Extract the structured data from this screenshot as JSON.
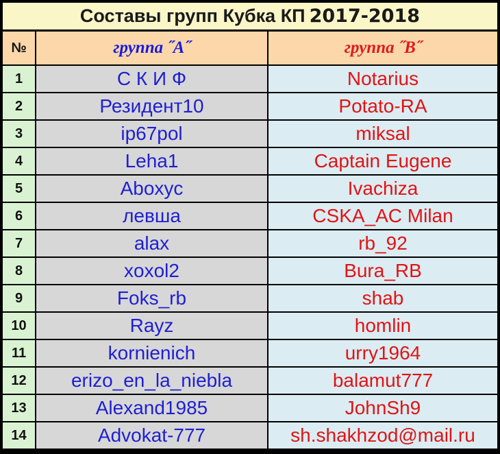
{
  "title": {
    "text": "Составы групп Кубка КП",
    "year": "2017-2018"
  },
  "header": {
    "num": "№",
    "group_a": "группа ˝A˝",
    "group_b": "группа ˝B˝"
  },
  "rows": [
    {
      "num": "1",
      "a": "С К И Ф",
      "b": "Notarius"
    },
    {
      "num": "2",
      "a": "Резидент10",
      "b": "Potato-RA"
    },
    {
      "num": "3",
      "a": "ip67pol",
      "b": "miksal"
    },
    {
      "num": "4",
      "a": "Leha1",
      "b": "Captain Eugene"
    },
    {
      "num": "5",
      "a": "Aboxyc",
      "b": "Ivachiza"
    },
    {
      "num": "6",
      "a": "левша",
      "b": "CSKA_AC Milan"
    },
    {
      "num": "7",
      "a": "alax",
      "b": "rb_92"
    },
    {
      "num": "8",
      "a": "xoxol2",
      "b": "Bura_RB"
    },
    {
      "num": "9",
      "a": "Foks_rb",
      "b": "shab"
    },
    {
      "num": "10",
      "a": "Rayz",
      "b": "homlin"
    },
    {
      "num": "11",
      "a": "kornienich",
      "b": "urry1964"
    },
    {
      "num": "12",
      "a": "erizo_en_la_niebla",
      "b": "balamut777"
    },
    {
      "num": "13",
      "a": "Alexand1985",
      "b": "JohnSh9"
    },
    {
      "num": "14",
      "a": "Advokat-777",
      "b": "sh.shakhzod@mail.ru"
    }
  ],
  "colors": {
    "group_a_text": "#1f1fd2",
    "group_b_text": "#e01414",
    "title_bg": "#fbf6c8",
    "header_bg": "#fbd7a9",
    "num_bg": "#d9f3d2",
    "group_a_bg": "#d7d7d7",
    "group_b_bg": "#dcecf3"
  }
}
